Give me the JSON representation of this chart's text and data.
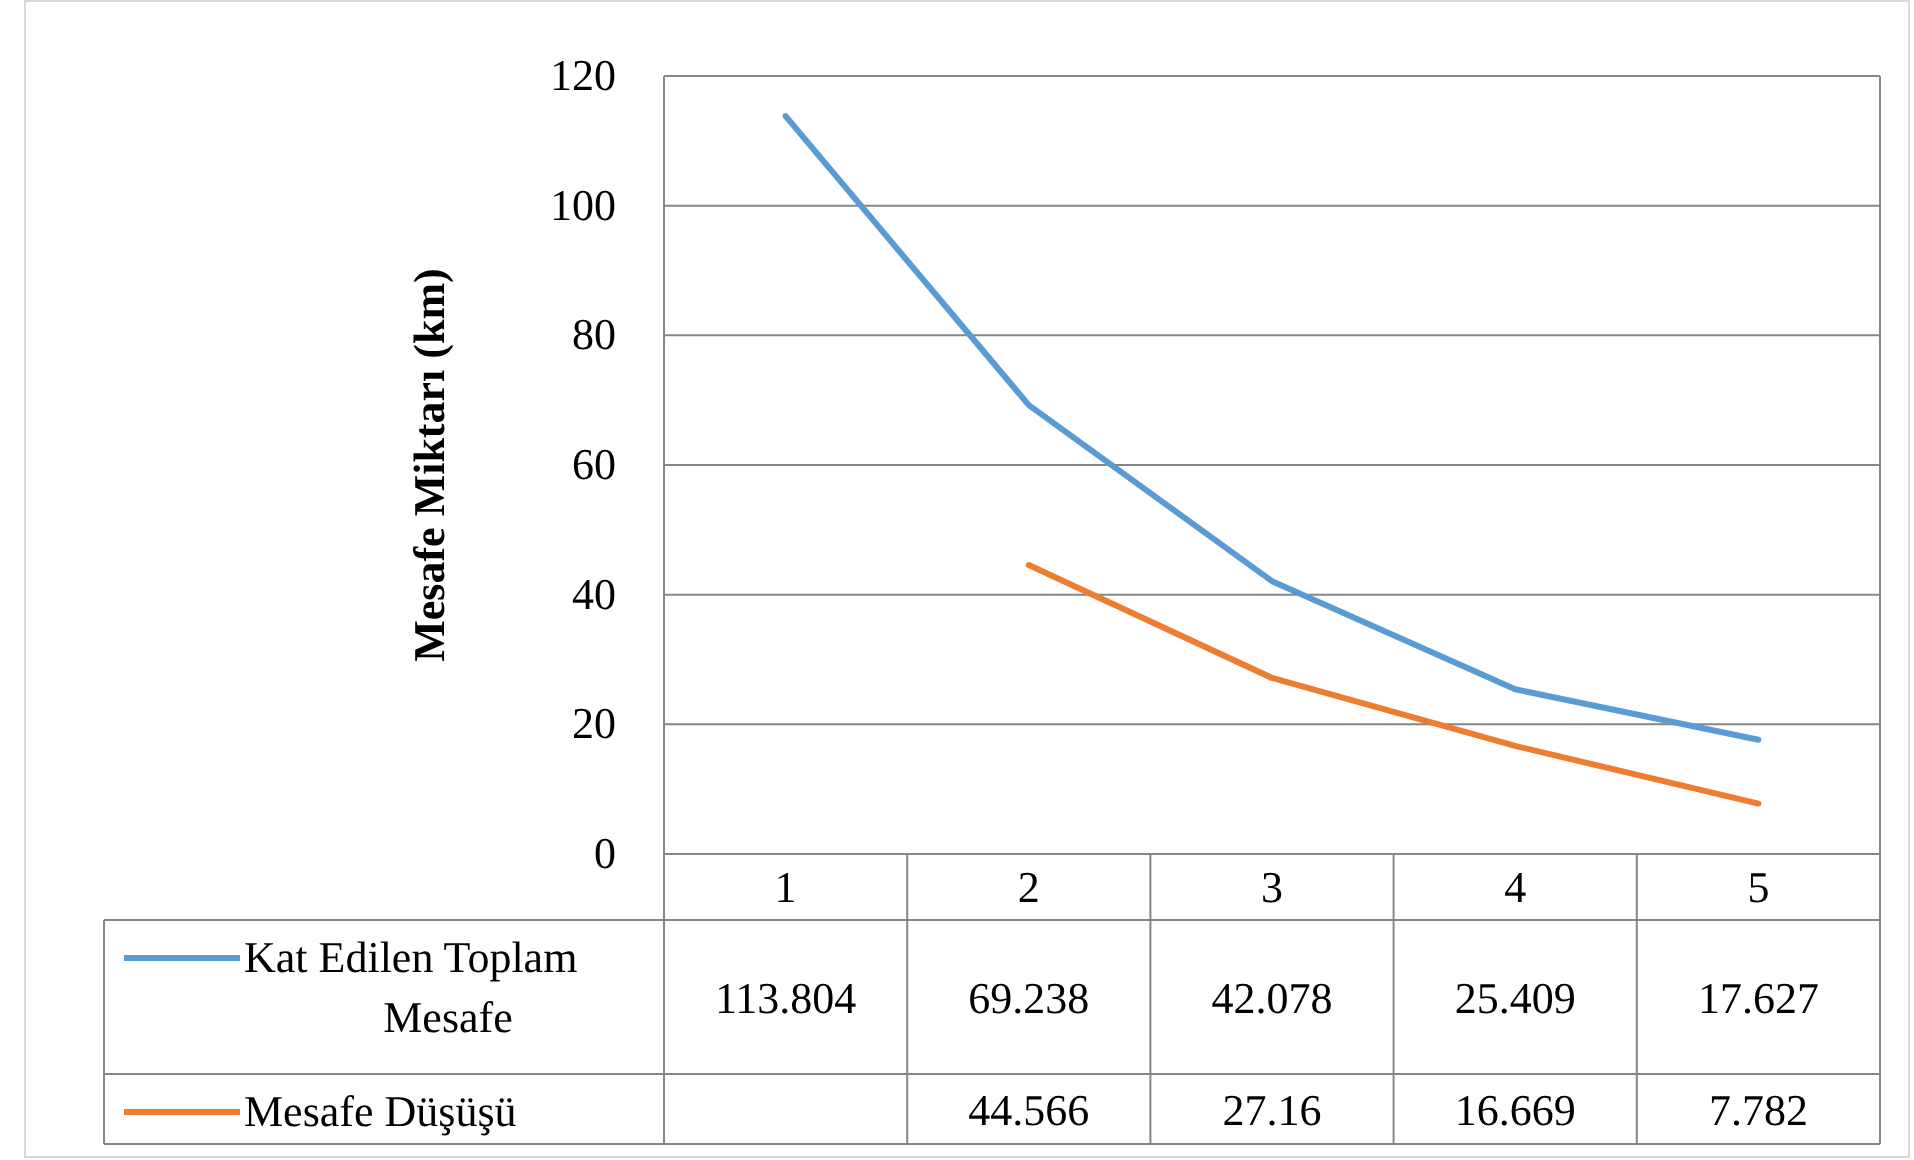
{
  "chart_data": {
    "type": "line",
    "ylabel": "Mesafe Miktarı (km)",
    "categories": [
      "1",
      "2",
      "3",
      "4",
      "5"
    ],
    "series": [
      {
        "name": "Kat Edilen Toplam Mesafe",
        "color": "#5b9bd5",
        "values": [
          113.804,
          69.238,
          42.078,
          25.409,
          17.627
        ]
      },
      {
        "name": "Mesafe Düşüşü",
        "color": "#ed7d31",
        "values": [
          null,
          44.566,
          27.16,
          16.669,
          7.782
        ]
      }
    ],
    "ylim": [
      0,
      120
    ],
    "yticks": [
      0,
      20,
      40,
      60,
      80,
      100,
      120
    ],
    "grid": "y",
    "legend": "bottom",
    "data_labels": true,
    "marker": "none",
    "line_style": "solid"
  }
}
